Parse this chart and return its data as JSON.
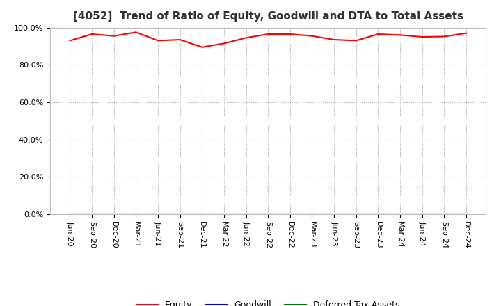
{
  "title": "[4052]  Trend of Ratio of Equity, Goodwill and DTA to Total Assets",
  "x_labels": [
    "Jun-20",
    "Sep-20",
    "Dec-20",
    "Mar-21",
    "Jun-21",
    "Sep-21",
    "Dec-21",
    "Mar-22",
    "Jun-22",
    "Sep-22",
    "Dec-22",
    "Mar-23",
    "Jun-23",
    "Sep-23",
    "Dec-23",
    "Mar-24",
    "Jun-24",
    "Sep-24",
    "Dec-24"
  ],
  "equity": [
    93.0,
    96.5,
    95.5,
    97.5,
    93.0,
    93.5,
    89.5,
    91.5,
    94.5,
    96.5,
    96.5,
    95.5,
    93.5,
    93.0,
    96.5,
    96.0,
    95.0,
    95.2,
    97.0
  ],
  "goodwill": [
    0.0,
    0.0,
    0.0,
    0.0,
    0.0,
    0.0,
    0.0,
    0.0,
    0.0,
    0.0,
    0.0,
    0.0,
    0.0,
    0.0,
    0.0,
    0.0,
    0.0,
    0.0,
    0.0
  ],
  "dta": [
    0.0,
    0.0,
    0.0,
    0.0,
    0.0,
    0.0,
    0.0,
    0.0,
    0.0,
    0.0,
    0.0,
    0.0,
    0.0,
    0.0,
    0.0,
    0.0,
    0.0,
    0.0,
    0.0
  ],
  "equity_color": "#FF0000",
  "goodwill_color": "#0000FF",
  "dta_color": "#008000",
  "ylim": [
    0,
    100
  ],
  "yticks": [
    0,
    20,
    40,
    60,
    80,
    100
  ],
  "ytick_labels": [
    "0.0%",
    "20.0%",
    "40.0%",
    "60.0%",
    "80.0%",
    "100.0%"
  ],
  "background_color": "#FFFFFF",
  "plot_bg_color": "#FFFFFF",
  "grid_color": "#AAAAAA",
  "title_fontsize": 11,
  "tick_fontsize": 8,
  "legend_labels": [
    "Equity",
    "Goodwill",
    "Deferred Tax Assets"
  ]
}
